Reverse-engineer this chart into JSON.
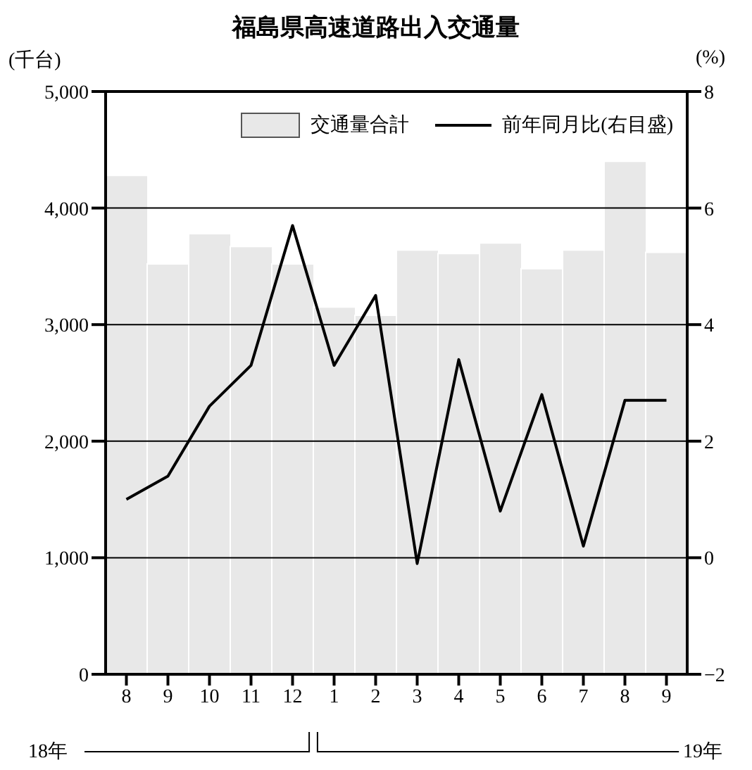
{
  "chart_data": {
    "type": "bar",
    "title": "福島県高速道路出入交通量",
    "ylabel": "(千台)",
    "y2label": "(%)",
    "categories": [
      "8",
      "9",
      "10",
      "11",
      "12",
      "1",
      "2",
      "3",
      "4",
      "5",
      "6",
      "7",
      "8",
      "9"
    ],
    "series": [
      {
        "name": "交通量合計",
        "color": "#e8e8e8",
        "values": [
          4280,
          3520,
          3780,
          3670,
          3520,
          3150,
          3080,
          3640,
          3610,
          3700,
          3480,
          3640,
          4400,
          3620
        ]
      },
      {
        "name": "前年同月比(右目盛)",
        "type": "line",
        "axis": "y2",
        "color": "#000000",
        "values": [
          1.0,
          1.4,
          2.6,
          3.3,
          5.7,
          3.3,
          4.5,
          -0.1,
          3.4,
          0.8,
          2.8,
          0.2,
          2.7,
          2.7
        ]
      }
    ],
    "ylim": [
      0,
      5000
    ],
    "yticks": [
      0,
      {
        "value": 1000,
        "label": "1,000"
      },
      {
        "value": 2000,
        "label": "2,000"
      },
      {
        "value": 3000,
        "label": "3,000"
      },
      {
        "value": 4000,
        "label": "4,000"
      },
      {
        "value": 5000,
        "label": "5,000"
      }
    ],
    "y2lim": [
      -2,
      8
    ],
    "y2ticks": [
      {
        "value": -2,
        "label": "−2"
      },
      0,
      2,
      4,
      6,
      8
    ],
    "grid": "y",
    "legend": "top right",
    "marker": "none",
    "annotations": [
      "18年",
      "19年"
    ]
  }
}
